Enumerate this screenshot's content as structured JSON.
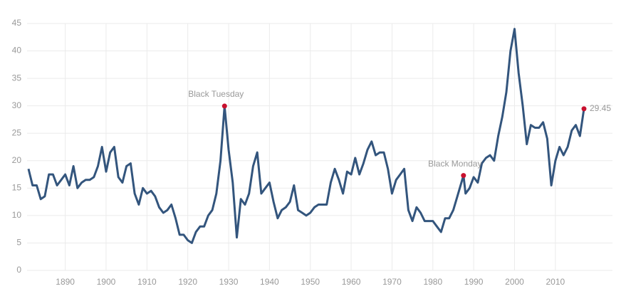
{
  "chart_data": {
    "type": "line",
    "series": [
      {
        "color": "#33557d",
        "x": [
          1881,
          1882,
          1883,
          1884,
          1885,
          1886,
          1887,
          1888,
          1889,
          1890,
          1891,
          1892,
          1893,
          1894,
          1895,
          1896,
          1897,
          1898,
          1899,
          1900,
          1901,
          1902,
          1903,
          1904,
          1905,
          1906,
          1907,
          1908,
          1909,
          1910,
          1911,
          1912,
          1913,
          1914,
          1915,
          1916,
          1917,
          1918,
          1919,
          1920,
          1921,
          1922,
          1923,
          1924,
          1925,
          1926,
          1927,
          1928,
          1929,
          1930,
          1931,
          1932,
          1933,
          1934,
          1935,
          1936,
          1937,
          1938,
          1939,
          1940,
          1941,
          1942,
          1943,
          1944,
          1945,
          1946,
          1947,
          1948,
          1949,
          1950,
          1951,
          1952,
          1953,
          1954,
          1955,
          1956,
          1957,
          1958,
          1959,
          1960,
          1961,
          1962,
          1963,
          1964,
          1965,
          1966,
          1967,
          1968,
          1969,
          1970,
          1971,
          1972,
          1973,
          1974,
          1975,
          1976,
          1977,
          1978,
          1979,
          1980,
          1981,
          1982,
          1983,
          1984,
          1985,
          1986,
          1987.5,
          1988,
          1989,
          1990,
          1991,
          1992,
          1993,
          1994,
          1995,
          1996,
          1997,
          1998,
          1999,
          2000,
          2001,
          2002,
          2003,
          2004,
          2005,
          2006,
          2007,
          2008,
          2009,
          2010,
          2011,
          2012,
          2013,
          2014,
          2015,
          2016,
          2017
        ],
        "values": [
          18.5,
          15.5,
          15.5,
          13,
          13.5,
          17.5,
          17.5,
          15.5,
          16.5,
          17.5,
          15.5,
          19,
          15,
          16,
          16.5,
          16.5,
          17,
          19,
          22.5,
          18,
          21.5,
          22.5,
          17,
          16,
          19,
          19.5,
          14,
          12,
          15,
          14,
          14.5,
          13.5,
          11.5,
          10.5,
          11,
          12,
          9.5,
          6.5,
          6.5,
          5.5,
          5,
          7,
          8,
          8,
          10,
          11,
          14,
          20,
          29.95,
          22,
          16,
          6,
          13,
          12,
          14,
          19,
          21.5,
          14,
          15,
          16,
          12.5,
          9.5,
          11,
          11.5,
          12.5,
          15.5,
          11,
          10.5,
          10,
          10.5,
          11.5,
          12,
          12,
          12,
          16,
          18.5,
          16.5,
          14,
          18,
          17.5,
          20.5,
          17.5,
          19.5,
          22,
          23.5,
          21,
          21.5,
          21.5,
          18.5,
          14,
          16.5,
          17.5,
          18.5,
          11,
          9,
          11.5,
          10.5,
          9,
          9,
          9,
          8,
          7,
          9.5,
          9.5,
          11,
          13.5,
          17.3,
          14,
          15,
          17,
          16,
          19.5,
          20.5,
          21,
          20,
          24.5,
          28,
          32.5,
          40,
          44,
          36,
          30,
          23,
          26.5,
          26,
          26,
          27,
          24,
          15.5,
          20,
          22.5,
          21,
          22.5,
          25.5,
          26.5,
          24.5,
          29.45
        ]
      }
    ],
    "annotations": [
      {
        "x": 1929,
        "y": 29.95,
        "label": "Black Tuesday"
      },
      {
        "x": 1987.5,
        "y": 17.3,
        "label": "Black Monday"
      }
    ],
    "marker_color": "#c8102e",
    "xlim": [
      1881,
      2017
    ],
    "xticks": [
      1890,
      1900,
      1910,
      1920,
      1930,
      1940,
      1950,
      1960,
      1970,
      1980,
      1990,
      2000,
      2010
    ],
    "ylim": [
      0,
      45
    ],
    "yticks": [
      0,
      5,
      10,
      15,
      20,
      25,
      30,
      35,
      40,
      45
    ],
    "grid": true
  }
}
